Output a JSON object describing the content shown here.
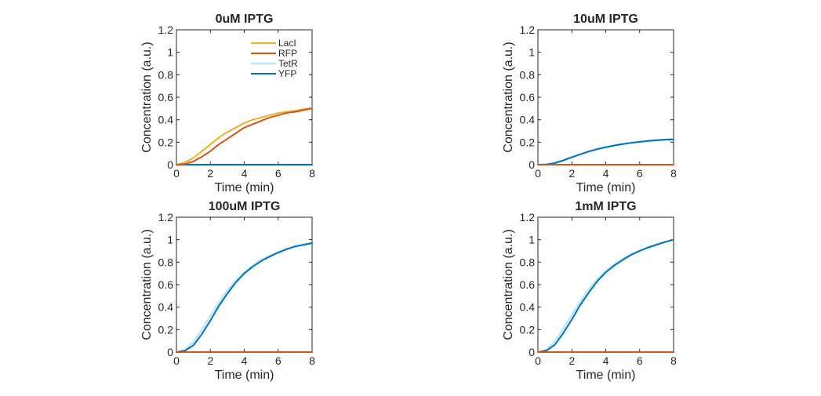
{
  "figure": {
    "legend": {
      "location": "top-right",
      "box": false
    },
    "series_styles": [
      {
        "name": "LacI",
        "color": "#EDB120"
      },
      {
        "name": "RFP",
        "color": "#D95319"
      },
      {
        "name": "TetR",
        "color": "#BDE6F7"
      },
      {
        "name": "YFP",
        "color": "#0072BD"
      }
    ]
  },
  "chart_data": [
    {
      "type": "line",
      "title": "0uM IPTG",
      "xlabel": "Time (min)",
      "ylabel": "Concentration (a.u.)",
      "xlim": [
        0,
        8
      ],
      "ylim": [
        0,
        1.2
      ],
      "xticks": [
        "0",
        "2",
        "4",
        "6",
        "8"
      ],
      "yticks": [
        "0",
        "0.2",
        "0.4",
        "0.6",
        "0.8",
        "1",
        "1.2"
      ],
      "grid": false,
      "show_legend": true,
      "x": [
        0,
        0.5,
        1,
        1.5,
        2,
        2.5,
        3,
        3.5,
        4,
        4.5,
        5,
        5.5,
        6,
        6.5,
        7,
        7.5,
        8
      ],
      "series": [
        {
          "name": "LacI",
          "values": [
            0,
            0.02,
            0.06,
            0.12,
            0.18,
            0.24,
            0.29,
            0.33,
            0.37,
            0.4,
            0.42,
            0.44,
            0.46,
            0.47,
            0.48,
            0.495,
            0.505
          ]
        },
        {
          "name": "RFP",
          "values": [
            0,
            0.005,
            0.03,
            0.07,
            0.12,
            0.18,
            0.23,
            0.28,
            0.33,
            0.36,
            0.39,
            0.42,
            0.44,
            0.46,
            0.47,
            0.485,
            0.5
          ]
        },
        {
          "name": "TetR",
          "values": [
            0,
            0,
            0,
            0,
            0,
            0,
            0,
            0,
            0,
            0,
            0,
            0,
            0,
            0,
            0,
            0,
            0
          ]
        },
        {
          "name": "YFP",
          "values": [
            0,
            0,
            0,
            0,
            0,
            0,
            0,
            0,
            0,
            0,
            0,
            0,
            0,
            0,
            0,
            0,
            0
          ]
        }
      ]
    },
    {
      "type": "line",
      "title": "10uM IPTG",
      "xlabel": "Time (min)",
      "ylabel": "Concentration (a.u.)",
      "xlim": [
        0,
        8
      ],
      "ylim": [
        0,
        1.2
      ],
      "xticks": [
        "0",
        "2",
        "4",
        "6",
        "8"
      ],
      "yticks": [
        "0",
        "0.2",
        "0.4",
        "0.6",
        "0.8",
        "1",
        "1.2"
      ],
      "grid": false,
      "show_legend": false,
      "x": [
        0,
        0.5,
        1,
        1.5,
        2,
        2.5,
        3,
        3.5,
        4,
        4.5,
        5,
        5.5,
        6,
        6.5,
        7,
        7.5,
        8
      ],
      "series": [
        {
          "name": "LacI",
          "values": [
            0,
            0,
            0,
            0,
            0,
            0,
            0,
            0,
            0,
            0,
            0,
            0,
            0,
            0,
            0,
            0,
            0
          ]
        },
        {
          "name": "RFP",
          "values": [
            0,
            0,
            0,
            0,
            0,
            0,
            0,
            0,
            0,
            0,
            0,
            0,
            0,
            0,
            0,
            0,
            0
          ]
        },
        {
          "name": "TetR",
          "values": [
            0,
            0.003,
            0.018,
            0.042,
            0.07,
            0.095,
            0.12,
            0.14,
            0.157,
            0.172,
            0.185,
            0.195,
            0.204,
            0.212,
            0.218,
            0.223,
            0.227
          ]
        },
        {
          "name": "YFP",
          "values": [
            0,
            0.002,
            0.014,
            0.038,
            0.066,
            0.092,
            0.117,
            0.138,
            0.155,
            0.17,
            0.183,
            0.194,
            0.203,
            0.211,
            0.217,
            0.222,
            0.226
          ]
        }
      ]
    },
    {
      "type": "line",
      "title": "100uM IPTG",
      "xlabel": "Time (min)",
      "ylabel": "Concentration (a.u.)",
      "xlim": [
        0,
        8
      ],
      "ylim": [
        0,
        1.2
      ],
      "xticks": [
        "0",
        "2",
        "4",
        "6",
        "8"
      ],
      "yticks": [
        "0",
        "0.2",
        "0.4",
        "0.6",
        "0.8",
        "1",
        "1.2"
      ],
      "grid": false,
      "show_legend": false,
      "x": [
        0,
        0.5,
        1,
        1.5,
        2,
        2.5,
        3,
        3.5,
        4,
        4.5,
        5,
        5.5,
        6,
        6.5,
        7,
        7.5,
        8
      ],
      "series": [
        {
          "name": "LacI",
          "values": [
            0,
            0,
            0,
            0,
            0,
            0,
            0,
            0,
            0,
            0,
            0,
            0,
            0,
            0,
            0,
            0,
            0
          ]
        },
        {
          "name": "RFP",
          "values": [
            0,
            0,
            0,
            0,
            0,
            0,
            0,
            0,
            0,
            0,
            0,
            0,
            0,
            0,
            0,
            0,
            0
          ]
        },
        {
          "name": "TetR",
          "values": [
            0,
            0.02,
            0.09,
            0.2,
            0.32,
            0.44,
            0.55,
            0.64,
            0.71,
            0.77,
            0.82,
            0.86,
            0.89,
            0.92,
            0.94,
            0.955,
            0.97
          ]
        },
        {
          "name": "YFP",
          "values": [
            0,
            0.012,
            0.06,
            0.16,
            0.28,
            0.41,
            0.52,
            0.62,
            0.7,
            0.76,
            0.81,
            0.85,
            0.885,
            0.915,
            0.94,
            0.955,
            0.97
          ]
        }
      ]
    },
    {
      "type": "line",
      "title": "1mM IPTG",
      "xlabel": "Time (min)",
      "ylabel": "Concentration (a.u.)",
      "xlim": [
        0,
        8
      ],
      "ylim": [
        0,
        1.2
      ],
      "xticks": [
        "0",
        "2",
        "4",
        "6",
        "8"
      ],
      "yticks": [
        "0",
        "0.2",
        "0.4",
        "0.6",
        "0.8",
        "1",
        "1.2"
      ],
      "grid": false,
      "show_legend": false,
      "x": [
        0,
        0.5,
        1,
        1.5,
        2,
        2.5,
        3,
        3.5,
        4,
        4.5,
        5,
        5.5,
        6,
        6.5,
        7,
        7.5,
        8
      ],
      "series": [
        {
          "name": "LacI",
          "values": [
            0,
            0,
            0,
            0,
            0,
            0,
            0,
            0,
            0,
            0,
            0,
            0,
            0,
            0,
            0,
            0,
            0
          ]
        },
        {
          "name": "RFP",
          "values": [
            0,
            0,
            0,
            0,
            0,
            0,
            0,
            0,
            0,
            0,
            0,
            0,
            0,
            0,
            0,
            0,
            0
          ]
        },
        {
          "name": "TetR",
          "values": [
            0,
            0.022,
            0.095,
            0.21,
            0.33,
            0.45,
            0.56,
            0.65,
            0.72,
            0.78,
            0.83,
            0.87,
            0.905,
            0.935,
            0.96,
            0.98,
            1.0
          ]
        },
        {
          "name": "YFP",
          "values": [
            0,
            0.013,
            0.065,
            0.17,
            0.29,
            0.42,
            0.53,
            0.63,
            0.71,
            0.77,
            0.82,
            0.865,
            0.9,
            0.93,
            0.955,
            0.98,
            1.0
          ]
        }
      ]
    }
  ]
}
